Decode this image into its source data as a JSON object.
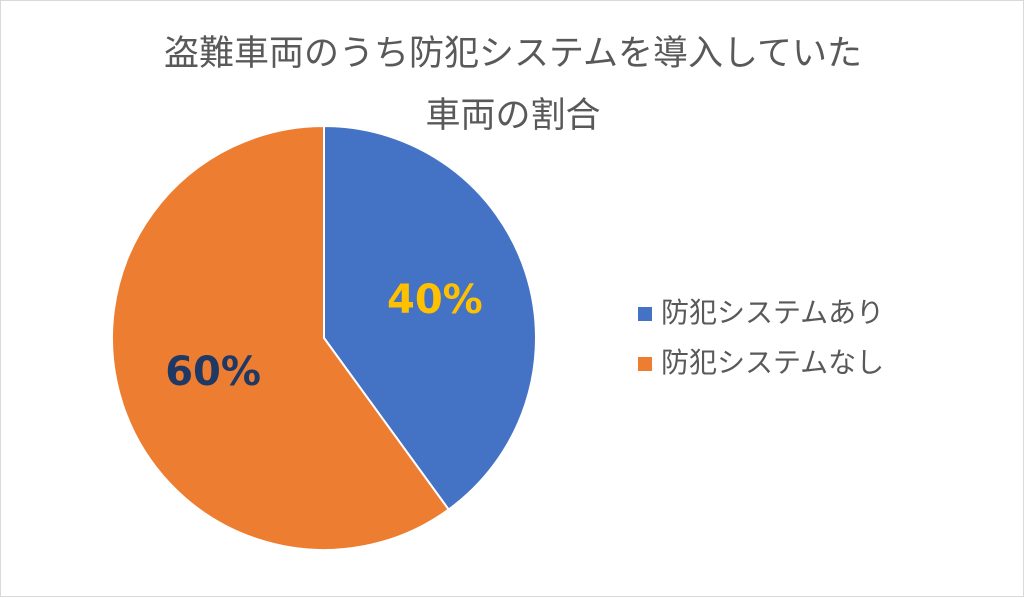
{
  "chart_data": {
    "type": "pie",
    "title": "盗難車両のうち防犯システムを導入していた車両の割合",
    "categories": [
      "防犯システムあり",
      "防犯システムなし"
    ],
    "values": [
      40,
      60
    ],
    "value_labels": [
      "40%",
      "60%"
    ],
    "colors": [
      "#4472c4",
      "#ed7d31"
    ],
    "value_label_colors": [
      "#ffc000",
      "#1f3864"
    ],
    "legend": "right"
  }
}
